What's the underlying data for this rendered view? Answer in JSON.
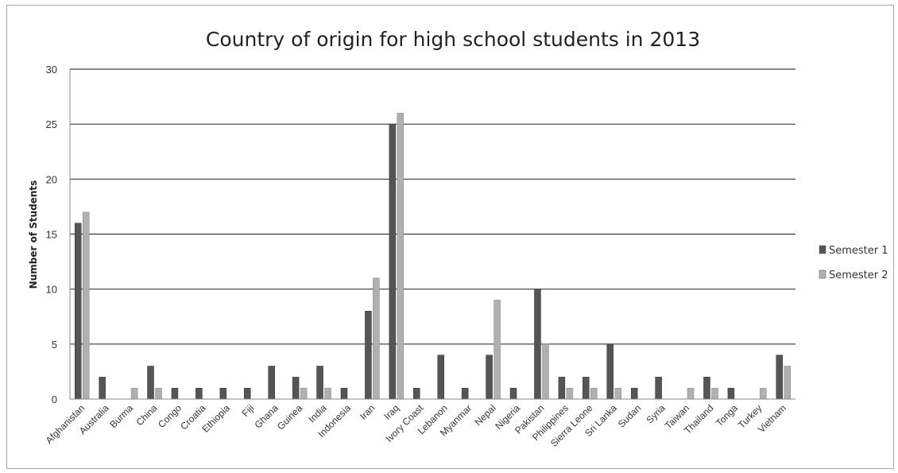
{
  "chart_data": {
    "type": "bar",
    "title": "Country of origin for high school students in 2013",
    "ylabel": "Number of Students",
    "xlabel": "",
    "ylim": [
      0,
      30
    ],
    "yticks": [
      0,
      5,
      10,
      15,
      20,
      25,
      30
    ],
    "grid": "horizontal",
    "legend_position": "right",
    "categories": [
      "Afghanistan",
      "Australia",
      "Burma",
      "China",
      "Congo",
      "Croatia",
      "Ethiopia",
      "Fiji",
      "Ghana",
      "Guinea",
      "India",
      "Indonesia",
      "Iran",
      "Iraq",
      "Ivory Coast",
      "Lebanon",
      "Myanmar",
      "Nepal",
      "Nigeria",
      "Pakistan",
      "Philippines",
      "Sierra Leone",
      "Sri Lanka",
      "Sudan",
      "Syria",
      "Taiwan",
      "Thailand",
      "Tonga",
      "Turkey",
      "Vietnam"
    ],
    "series": [
      {
        "name": "Semester 1",
        "color": "#555555",
        "values": [
          16,
          2,
          0,
          3,
          1,
          1,
          1,
          1,
          3,
          2,
          3,
          1,
          8,
          25,
          1,
          4,
          1,
          4,
          1,
          10,
          2,
          2,
          5,
          1,
          2,
          0,
          2,
          1,
          0,
          4
        ]
      },
      {
        "name": "Semester 2",
        "color": "#b0b0b0",
        "values": [
          17,
          0,
          1,
          1,
          0,
          0,
          0,
          0,
          0,
          1,
          1,
          0,
          11,
          26,
          0,
          0,
          0,
          9,
          0,
          5,
          1,
          1,
          1,
          0,
          0,
          1,
          1,
          0,
          1,
          3
        ]
      }
    ]
  }
}
